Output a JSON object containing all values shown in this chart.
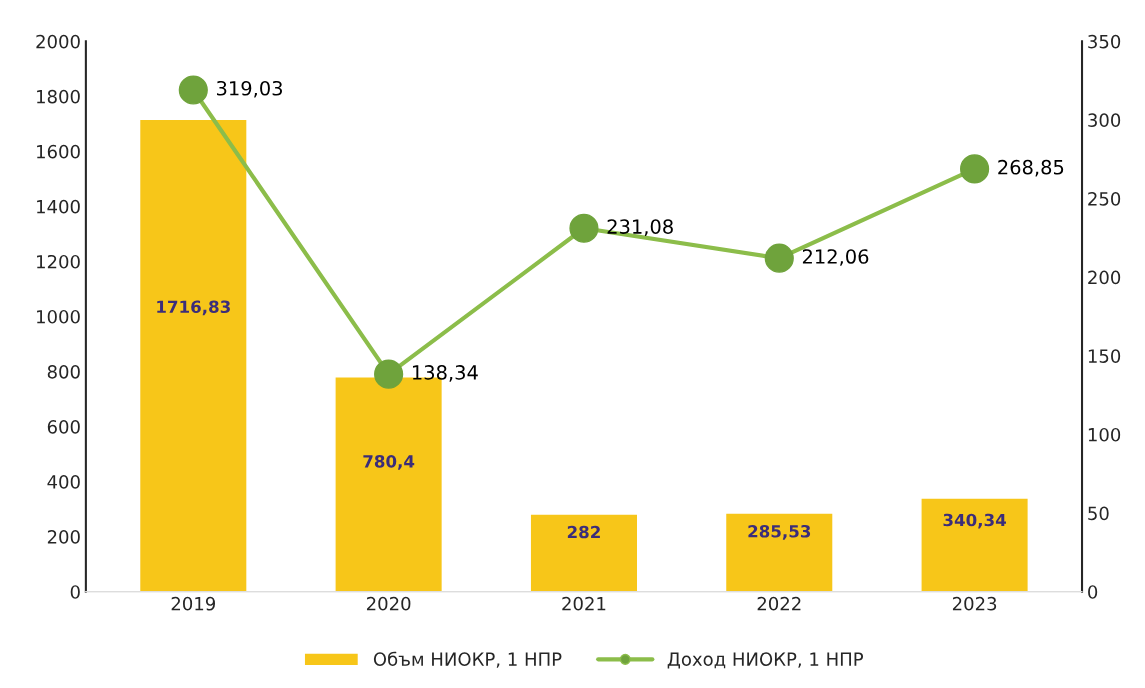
{
  "chart_data": {
    "type": "bar",
    "categories": [
      "2019",
      "2020",
      "2021",
      "2022",
      "2023"
    ],
    "series": [
      {
        "name": "Объм НИОКР, 1 НПР",
        "color": "#f7c619",
        "values": [
          1716.83,
          780.4,
          282,
          285.53,
          340.34
        ],
        "value_labels": [
          "1716,83",
          "780,4",
          "282",
          "285,53",
          "340,34"
        ]
      },
      {
        "name": "Доход НИОКР, 1 НПР",
        "type": "line",
        "axis": "y2",
        "color": "#8cbd4a",
        "marker": "circle",
        "values": [
          319.03,
          138.34,
          231.08,
          212.06,
          268.85
        ],
        "value_labels": [
          "319,03",
          "138,34",
          "231,08",
          "212,06",
          "268,85"
        ]
      }
    ],
    "ylim": [
      0,
      2000
    ],
    "yticks": [
      0,
      200,
      400,
      600,
      800,
      1000,
      1200,
      1400,
      1600,
      1800,
      2000
    ],
    "y2lim": [
      0,
      350
    ],
    "y2ticks": [
      0,
      50,
      100,
      150,
      200,
      250,
      300,
      350
    ],
    "grid": false,
    "legend": "bottom"
  }
}
